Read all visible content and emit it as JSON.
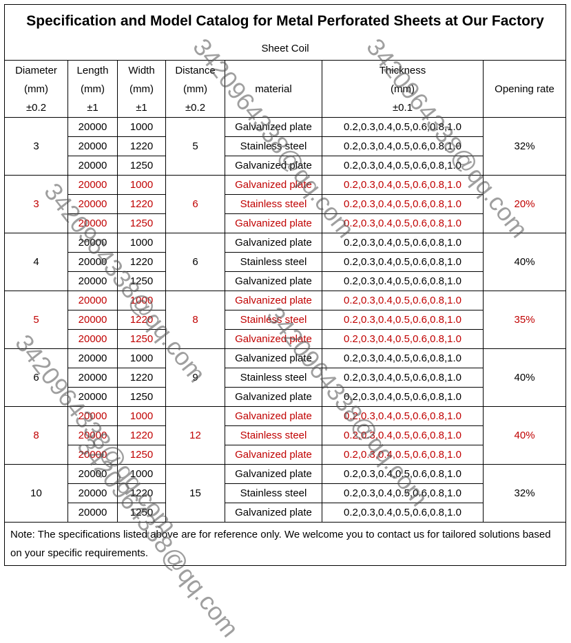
{
  "title": "Specification and Model Catalog for Metal Perforated Sheets at Our Factory",
  "subtitle": "Sheet Coil",
  "headers": {
    "diameter": [
      "Diameter",
      "(mm)",
      "±0.2"
    ],
    "length": [
      "Length",
      "(mm)",
      "±1"
    ],
    "width": [
      "Width",
      "(mm)",
      "±1"
    ],
    "distance": [
      "Distance",
      "(mm)",
      "±0.2"
    ],
    "material": "material",
    "thickness": [
      "Thickness",
      "(mm)",
      "±0.1"
    ],
    "opening": "Opening rate"
  },
  "groups": [
    {
      "diameter": "3",
      "distance": "5",
      "opening": "32%",
      "red": false,
      "rows": [
        {
          "length": "20000",
          "width": "1000",
          "material": "Galvanized plate",
          "thickness": "0.2,0.3,0.4,0.5,0.6,0.8,1.0"
        },
        {
          "length": "20000",
          "width": "1220",
          "material": "Stainless steel",
          "thickness": "0.2,0.3,0.4,0.5,0.6,0.8,1.0"
        },
        {
          "length": "20000",
          "width": "1250",
          "material": "Galvanized plate",
          "thickness": "0.2,0.3,0.4,0.5,0.6,0.8,1.0"
        }
      ]
    },
    {
      "diameter": "3",
      "distance": "6",
      "opening": "20%",
      "red": true,
      "rows": [
        {
          "length": "20000",
          "width": "1000",
          "material": "Galvanized plate",
          "thickness": "0.2,0.3,0.4,0.5,0.6,0.8,1.0"
        },
        {
          "length": "20000",
          "width": "1220",
          "material": "Stainless steel",
          "thickness": "0.2,0.3,0.4,0.5,0.6,0.8,1.0"
        },
        {
          "length": "20000",
          "width": "1250",
          "material": "Galvanized plate",
          "thickness": "0.2,0.3,0.4,0.5,0.6,0.8,1.0"
        }
      ]
    },
    {
      "diameter": "4",
      "distance": "6",
      "opening": "40%",
      "red": false,
      "rows": [
        {
          "length": "20000",
          "width": "1000",
          "material": "Galvanized plate",
          "thickness": "0.2,0.3,0.4,0.5,0.6,0.8,1.0"
        },
        {
          "length": "20000",
          "width": "1220",
          "material": "Stainless steel",
          "thickness": "0.2,0.3,0.4,0.5,0.6,0.8,1.0"
        },
        {
          "length": "20000",
          "width": "1250",
          "material": "Galvanized plate",
          "thickness": "0.2,0.3,0.4,0.5,0.6,0.8,1.0"
        }
      ]
    },
    {
      "diameter": "5",
      "distance": "8",
      "opening": "35%",
      "red": true,
      "rows": [
        {
          "length": "20000",
          "width": "1000",
          "material": "Galvanized plate",
          "thickness": "0.2,0.3,0.4,0.5,0.6,0.8,1.0"
        },
        {
          "length": "20000",
          "width": "1220",
          "material": "Stainless steel",
          "thickness": "0.2,0.3,0.4,0.5,0.6,0.8,1.0"
        },
        {
          "length": "20000",
          "width": "1250",
          "material": "Galvanized plate",
          "thickness": "0.2,0.3,0.4,0.5,0.6,0.8,1.0"
        }
      ]
    },
    {
      "diameter": "6",
      "distance": "9",
      "opening": "40%",
      "red": false,
      "rows": [
        {
          "length": "20000",
          "width": "1000",
          "material": "Galvanized plate",
          "thickness": "0.2,0.3,0.4,0.5,0.6,0.8,1.0"
        },
        {
          "length": "20000",
          "width": "1220",
          "material": "Stainless steel",
          "thickness": "0.2,0.3,0.4,0.5,0.6,0.8,1.0"
        },
        {
          "length": "20000",
          "width": "1250",
          "material": "Galvanized plate",
          "thickness": "0.2,0.3,0.4,0.5,0.6,0.8,1.0"
        }
      ]
    },
    {
      "diameter": "8",
      "distance": "12",
      "opening": "40%",
      "red": true,
      "rows": [
        {
          "length": "20000",
          "width": "1000",
          "material": "Galvanized plate",
          "thickness": "0.2,0.3,0.4,0.5,0.6,0.8,1.0"
        },
        {
          "length": "20000",
          "width": "1220",
          "material": "Stainless steel",
          "thickness": "0.2,0.3,0.4,0.5,0.6,0.8,1.0"
        },
        {
          "length": "20000",
          "width": "1250",
          "material": "Galvanized plate",
          "thickness": "0.2,0.3,0.4,0.5,0.6,0.8,1.0"
        }
      ]
    },
    {
      "diameter": "10",
      "distance": "15",
      "opening": "32%",
      "red": false,
      "rows": [
        {
          "length": "20000",
          "width": "1000",
          "material": "Galvanized plate",
          "thickness": "0.2,0.3,0.4,0.5,0.6,0.8,1.0"
        },
        {
          "length": "20000",
          "width": "1220",
          "material": "Stainless steel",
          "thickness": "0.2,0.3,0.4,0.5,0.6,0.8,1.0"
        },
        {
          "length": "20000",
          "width": "1250",
          "material": "Galvanized plate",
          "thickness": "0.2,0.3,0.4,0.5,0.6,0.8,1.0"
        }
      ]
    }
  ],
  "note": "Note: The specifications listed above are for reference only. We welcome you to contact us for tailored solutions based on your specific requirements.",
  "watermark": "3420964338@qq.com",
  "colors": {
    "red_text": "#c00000",
    "border": "#000000"
  }
}
